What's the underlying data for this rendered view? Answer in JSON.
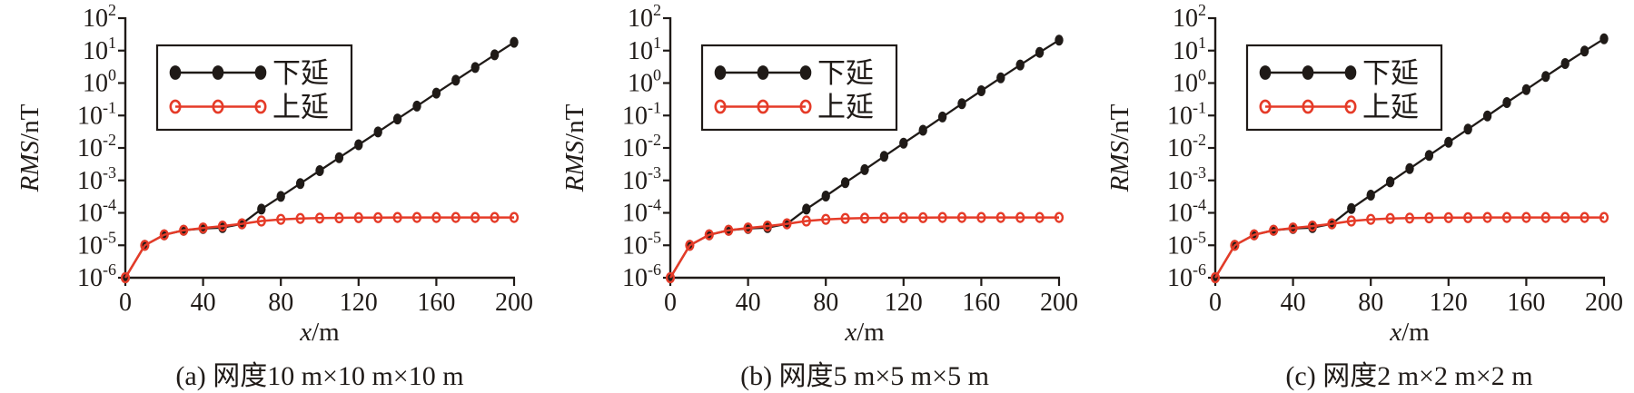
{
  "colors": {
    "axis": "#1f1a17",
    "down_series": "#1f1a17",
    "up_series": "#e53b28",
    "background": "#ffffff",
    "legend_fill": "#ffffff"
  },
  "chart_data": [
    {
      "type": "line",
      "caption": "(a) 网度10 m×10 m×10 m",
      "xlabel": {
        "italic": "x",
        "rest": "/m"
      },
      "ylabel": {
        "italic": "RMS",
        "rest": "/nT"
      },
      "x_ticks": [
        0,
        40,
        80,
        120,
        160,
        200
      ],
      "y_tick_exponents": [
        2,
        1,
        0,
        -1,
        -2,
        -3,
        -4,
        -5,
        -6
      ],
      "xlim": [
        0,
        200
      ],
      "ylim_exponents": [
        -6,
        2
      ],
      "grid": false,
      "legend": {
        "position": "top-left",
        "entries": [
          "下延",
          "上延"
        ]
      },
      "x": [
        0,
        10,
        20,
        30,
        40,
        50,
        60,
        70,
        80,
        90,
        100,
        110,
        120,
        130,
        140,
        150,
        160,
        170,
        180,
        190,
        200
      ],
      "series": [
        {
          "name": "下延",
          "key": "down",
          "color": "#1f1a17",
          "marker": "filled",
          "values": [
            1e-06,
            1e-05,
            2.1e-05,
            2.9e-05,
            3.3e-05,
            3.5e-05,
            4.6e-05,
            0.00013,
            0.00032,
            0.0008,
            0.002,
            0.005,
            0.0125,
            0.031,
            0.078,
            0.195,
            0.49,
            1.22,
            3.0,
            7.4,
            18
          ]
        },
        {
          "name": "上延",
          "key": "up",
          "color": "#e53b28",
          "marker": "open",
          "values": [
            1e-06,
            1e-05,
            2.1e-05,
            2.9e-05,
            3.4e-05,
            3.9e-05,
            4.6e-05,
            5.6e-05,
            6.3e-05,
            6.7e-05,
            6.9e-05,
            7e-05,
            7.1e-05,
            7.1e-05,
            7.2e-05,
            7.2e-05,
            7.2e-05,
            7.2e-05,
            7.2e-05,
            7.2e-05,
            7.2e-05
          ]
        }
      ]
    },
    {
      "type": "line",
      "caption": "(b) 网度5 m×5 m×5 m",
      "xlabel": {
        "italic": "x",
        "rest": "/m"
      },
      "ylabel": {
        "italic": "RMS",
        "rest": "/nT"
      },
      "x_ticks": [
        0,
        40,
        80,
        120,
        160,
        200
      ],
      "y_tick_exponents": [
        2,
        1,
        0,
        -1,
        -2,
        -3,
        -4,
        -5,
        -6
      ],
      "xlim": [
        0,
        200
      ],
      "ylim_exponents": [
        -6,
        2
      ],
      "grid": false,
      "legend": {
        "position": "top-left",
        "entries": [
          "下延",
          "上延"
        ]
      },
      "x": [
        0,
        10,
        20,
        30,
        40,
        50,
        60,
        70,
        80,
        90,
        100,
        110,
        120,
        130,
        140,
        150,
        160,
        170,
        180,
        190,
        200
      ],
      "series": [
        {
          "name": "下延",
          "key": "down",
          "color": "#1f1a17",
          "marker": "filled",
          "values": [
            1e-06,
            1e-05,
            2.1e-05,
            2.9e-05,
            3.3e-05,
            3.5e-05,
            4.6e-05,
            0.00013,
            0.00033,
            0.00085,
            0.00215,
            0.0055,
            0.014,
            0.035,
            0.09,
            0.23,
            0.58,
            1.45,
            3.6,
            8.8,
            21
          ]
        },
        {
          "name": "上延",
          "key": "up",
          "color": "#e53b28",
          "marker": "open",
          "values": [
            1e-06,
            1e-05,
            2.1e-05,
            2.9e-05,
            3.4e-05,
            3.9e-05,
            4.6e-05,
            5.6e-05,
            6.3e-05,
            6.7e-05,
            6.9e-05,
            7e-05,
            7.1e-05,
            7.1e-05,
            7.2e-05,
            7.2e-05,
            7.2e-05,
            7.2e-05,
            7.2e-05,
            7.2e-05,
            7.2e-05
          ]
        }
      ]
    },
    {
      "type": "line",
      "caption": "(c) 网度2 m×2 m×2 m",
      "xlabel": {
        "italic": "x",
        "rest": "/m"
      },
      "ylabel": {
        "italic": "RMS",
        "rest": "/nT"
      },
      "x_ticks": [
        0,
        40,
        80,
        120,
        160,
        200
      ],
      "y_tick_exponents": [
        2,
        1,
        0,
        -1,
        -2,
        -3,
        -4,
        -5,
        -6
      ],
      "xlim": [
        0,
        200
      ],
      "ylim_exponents": [
        -6,
        2
      ],
      "grid": false,
      "legend": {
        "position": "top-left",
        "entries": [
          "下延",
          "上延"
        ]
      },
      "x": [
        0,
        10,
        20,
        30,
        40,
        50,
        60,
        70,
        80,
        90,
        100,
        110,
        120,
        130,
        140,
        150,
        160,
        170,
        180,
        190,
        200
      ],
      "series": [
        {
          "name": "下延",
          "key": "down",
          "color": "#1f1a17",
          "marker": "filled",
          "values": [
            1e-06,
            1e-05,
            2.1e-05,
            2.9e-05,
            3.3e-05,
            3.5e-05,
            4.6e-05,
            0.000135,
            0.00035,
            0.0009,
            0.0023,
            0.0059,
            0.015,
            0.038,
            0.097,
            0.25,
            0.63,
            1.6,
            4.0,
            9.7,
            23
          ]
        },
        {
          "name": "上延",
          "key": "up",
          "color": "#e53b28",
          "marker": "open",
          "values": [
            1e-06,
            1e-05,
            2.1e-05,
            2.9e-05,
            3.4e-05,
            3.9e-05,
            4.6e-05,
            5.6e-05,
            6.3e-05,
            6.7e-05,
            6.9e-05,
            7e-05,
            7.1e-05,
            7.1e-05,
            7.2e-05,
            7.2e-05,
            7.2e-05,
            7.2e-05,
            7.2e-05,
            7.2e-05,
            7.2e-05
          ]
        }
      ]
    }
  ]
}
